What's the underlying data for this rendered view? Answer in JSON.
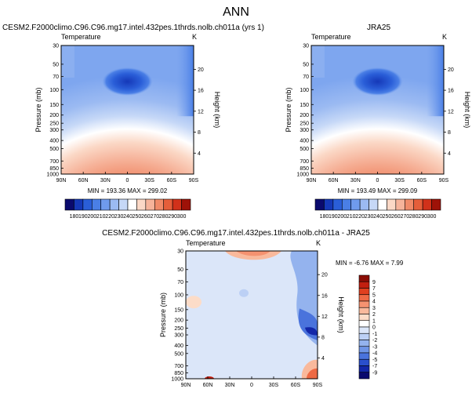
{
  "page": {
    "title": "ANN"
  },
  "chart_data": [
    {
      "type": "heatmap",
      "id": "model",
      "title": "CESM2.F2000climo.C96.C96.mg17.intel.432pes.1thrds.nolb.ch011a (yrs 1)",
      "left_label": "Temperature",
      "right_label": "K",
      "ylabel": "Pressure (mb)",
      "y2label": "Height (km)",
      "x_ticks": [
        "90N",
        "60N",
        "30N",
        "0",
        "30S",
        "60S",
        "90S"
      ],
      "y_ticks": [
        "30",
        "50",
        "70",
        "100",
        "150",
        "200",
        "250",
        "300",
        "400",
        "500",
        "700",
        "850",
        "1000"
      ],
      "y2_ticks": [
        "20",
        "16",
        "12",
        "8",
        "4"
      ],
      "y2_tick_heights_km": [
        20,
        16,
        12,
        8,
        4
      ],
      "ylim": [
        1000,
        30
      ],
      "stats": "MIN = 193.36   MAX = 299.02",
      "min": 193.36,
      "max": 299.02,
      "colormap": "blue-white-red",
      "grid": false
    },
    {
      "type": "heatmap",
      "id": "obs",
      "title": "JRA25",
      "left_label": "Temperature",
      "right_label": "K",
      "ylabel": "Pressure (mb)",
      "y2label": "Height (km)",
      "x_ticks": [
        "90N",
        "60N",
        "30N",
        "0",
        "30S",
        "60S",
        "90S"
      ],
      "y_ticks": [
        "30",
        "50",
        "70",
        "100",
        "150",
        "200",
        "250",
        "300",
        "400",
        "500",
        "700",
        "850",
        "1000"
      ],
      "y2_ticks": [
        "20",
        "16",
        "12",
        "8",
        "4"
      ],
      "y2_tick_heights_km": [
        20,
        16,
        12,
        8,
        4
      ],
      "ylim": [
        1000,
        30
      ],
      "stats": "MIN = 193.49   MAX = 299.09",
      "min": 193.49,
      "max": 299.09,
      "colormap": "blue-white-red",
      "grid": false
    },
    {
      "type": "heatmap",
      "id": "diff",
      "title": "CESM2.F2000climo.C96.C96.mg17.intel.432pes.1thrds.nolb.ch011a - JRA25",
      "left_label": "Temperature",
      "right_label": "K",
      "ylabel": "Pressure (mb)",
      "y2label": "Height (km)",
      "x_ticks": [
        "90N",
        "60N",
        "30N",
        "0",
        "30S",
        "60S",
        "90S"
      ],
      "y_ticks": [
        "30",
        "50",
        "70",
        "100",
        "150",
        "200",
        "250",
        "300",
        "400",
        "500",
        "700",
        "850",
        "1000"
      ],
      "y2_ticks": [
        "20",
        "16",
        "12",
        "8",
        "4"
      ],
      "y2_tick_heights_km": [
        20,
        16,
        12,
        8,
        4
      ],
      "ylim": [
        1000,
        30
      ],
      "stats": "MIN = -6.76   MAX =  7.99",
      "min": -6.76,
      "max": 7.99,
      "colormap": "blue-white-red diverging",
      "grid": false
    }
  ],
  "colorbars": {
    "model": {
      "labels": [
        "180",
        "190",
        "200",
        "210",
        "220",
        "230",
        "240",
        "250",
        "260",
        "270",
        "280",
        "290",
        "300"
      ],
      "colors": [
        "#0a0a6e",
        "#1538b8",
        "#2a5ed8",
        "#4a7fe6",
        "#6f9bed",
        "#9bbaf2",
        "#c6d8f7",
        "#ffffff",
        "#fbd8c6",
        "#f6b39a",
        "#f08a68",
        "#e55e3a",
        "#d1311a",
        "#9e1208"
      ]
    },
    "obs": {
      "labels": [
        "180",
        "190",
        "200",
        "210",
        "220",
        "230",
        "240",
        "250",
        "260",
        "270",
        "280",
        "290",
        "300"
      ],
      "colors": [
        "#0a0a6e",
        "#1538b8",
        "#2a5ed8",
        "#4a7fe6",
        "#6f9bed",
        "#9bbaf2",
        "#c6d8f7",
        "#ffffff",
        "#fbd8c6",
        "#f6b39a",
        "#f08a68",
        "#e55e3a",
        "#d1311a",
        "#9e1208"
      ]
    },
    "diff": {
      "labels": [
        "9",
        "7",
        "5",
        "4",
        "3",
        "2",
        "1",
        "0",
        "-1",
        "-2",
        "-3",
        "-4",
        "-5",
        "-7",
        "-9"
      ],
      "colors": [
        "#8b0d06",
        "#c21f10",
        "#e0401f",
        "#ee6a45",
        "#f59270",
        "#f9b99c",
        "#fcdcc8",
        "#ffffff",
        "#dbe6f9",
        "#bcd0f5",
        "#94b3ee",
        "#6f95e6",
        "#4a73dc",
        "#2a4fcc",
        "#1327a8",
        "#0a0a6e"
      ]
    }
  }
}
